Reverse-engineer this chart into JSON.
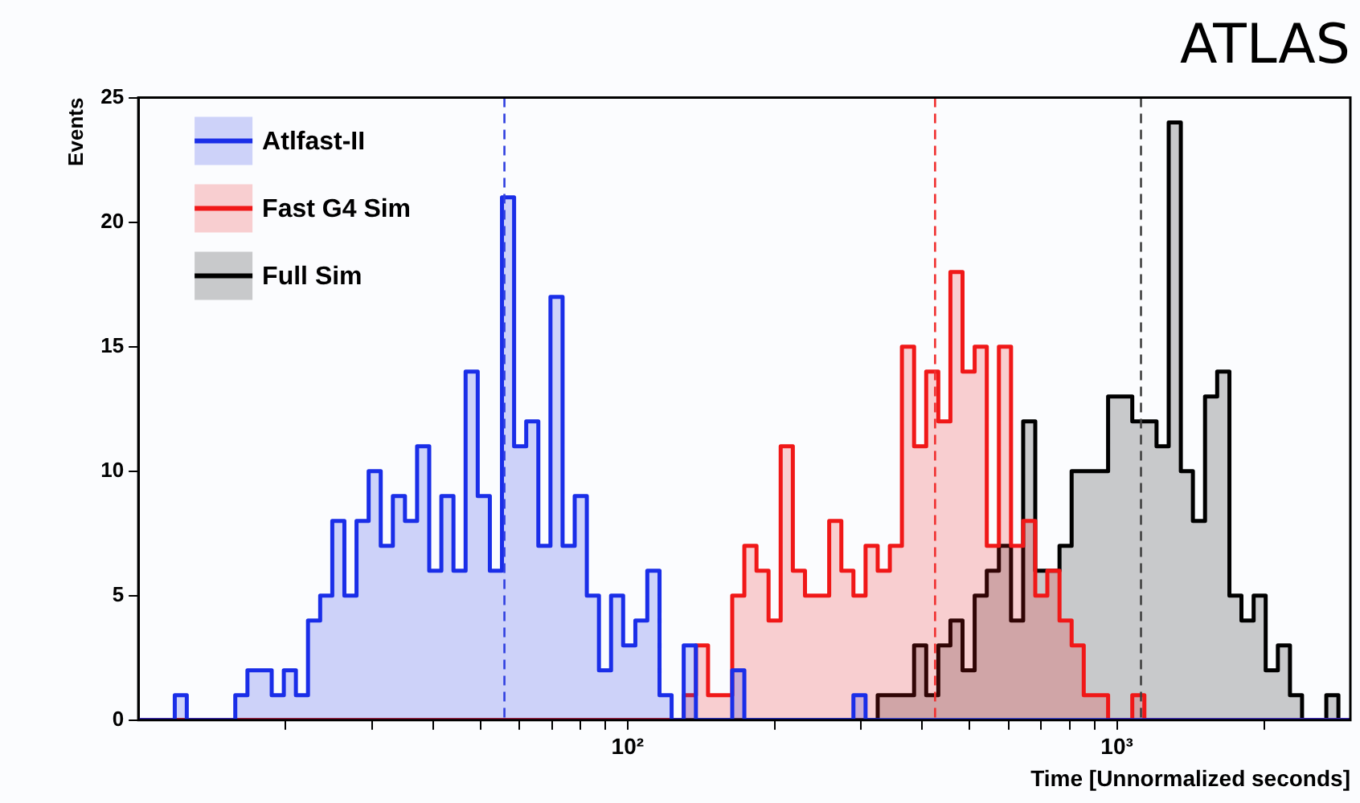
{
  "chart_data": {
    "type": "histogram",
    "title": "ATLAS",
    "xlabel": "Time [Unnormalized seconds]",
    "ylabel": "Events",
    "bins": [
      10,
      10.59,
      11.21,
      11.87,
      12.56,
      13.3,
      14.08,
      14.91,
      15.78,
      16.71,
      17.69,
      18.73,
      19.83,
      20.99,
      22.22,
      23.53,
      24.91,
      26.37,
      27.92,
      29.56,
      31.29,
      33.13,
      35.07,
      37.13,
      39.31,
      41.62,
      44.06,
      46.65,
      49.39,
      52.29,
      55.36,
      58.61,
      62.05,
      65.69,
      69.55,
      73.63,
      77.95,
      82.53,
      87.38,
      92.5,
      97.91,
      103.7,
      109.7,
      116.2,
      123,
      130.2,
      137.9,
      146,
      154.6,
      163.6,
      173.2,
      183.4,
      194.1,
      205.5,
      217.6,
      230.4,
      243.9,
      258.2,
      273.4,
      289.4,
      306.4,
      324.4,
      343.5,
      363.6,
      385,
      407.6,
      431.5,
      456.8,
      483.6,
      512,
      542.1,
      573.9,
      607.6,
      643.3,
      681,
      720.8,
      763.3,
      808.1,
      855.5,
      905.7,
      959.4,
      1016,
      1075,
      1138,
      1205,
      1276,
      1351,
      1430,
      1514,
      1603,
      1698,
      1797,
      1903,
      2014,
      2133,
      2258,
      2390,
      2531,
      2679,
      2836,
      3000
    ],
    "series": [
      {
        "name": "Atlfast-II",
        "color": "#1a2ee8",
        "values": [
          0,
          0,
          0,
          1,
          0,
          0,
          0,
          0,
          1,
          2,
          2,
          1,
          2,
          1,
          4,
          5,
          8,
          5,
          8,
          10,
          7,
          9,
          8,
          11,
          6,
          9,
          6,
          14,
          9,
          6,
          21,
          11,
          12,
          7,
          17,
          7,
          9,
          5,
          2,
          5,
          3,
          4,
          6,
          1,
          0,
          3,
          0,
          0,
          0,
          2,
          0,
          0,
          0,
          0,
          0,
          0,
          0,
          0,
          0,
          1,
          0,
          0,
          0,
          0,
          0,
          0,
          0,
          0,
          0,
          0,
          0,
          0,
          0,
          0,
          0,
          0,
          0,
          0,
          0,
          0,
          0,
          0,
          0,
          0,
          0,
          0,
          0,
          0,
          0,
          0,
          0,
          0,
          0,
          0,
          0,
          0,
          0,
          0,
          0,
          0
        ]
      },
      {
        "name": "Fast G4 Sim",
        "color": "#f01818",
        "values": [
          0,
          0,
          0,
          0,
          0,
          0,
          0,
          0,
          0,
          0,
          0,
          0,
          0,
          0,
          0,
          0,
          0,
          0,
          0,
          0,
          0,
          0,
          0,
          0,
          0,
          0,
          0,
          0,
          0,
          0,
          0,
          0,
          0,
          0,
          0,
          0,
          0,
          0,
          0,
          0,
          0,
          0,
          0,
          0,
          0,
          1,
          3,
          1,
          1,
          5,
          7,
          6,
          4,
          11,
          6,
          5,
          5,
          8,
          6,
          5,
          7,
          6,
          7,
          15,
          11,
          14,
          12,
          18,
          14,
          15,
          7,
          15,
          7,
          8,
          5,
          6,
          4,
          3,
          1,
          1,
          0,
          0,
          1,
          0,
          0,
          0,
          0,
          0,
          0,
          0,
          0,
          0,
          0,
          0,
          0,
          0,
          0,
          0,
          0,
          0
        ]
      },
      {
        "name": "Full Sim",
        "color": "#000000",
        "values": [
          0,
          0,
          0,
          0,
          0,
          0,
          0,
          0,
          0,
          0,
          0,
          0,
          0,
          0,
          0,
          0,
          0,
          0,
          0,
          0,
          0,
          0,
          0,
          0,
          0,
          0,
          0,
          0,
          0,
          0,
          0,
          0,
          0,
          0,
          0,
          0,
          0,
          0,
          0,
          0,
          0,
          0,
          0,
          0,
          0,
          0,
          0,
          0,
          0,
          0,
          0,
          0,
          0,
          0,
          0,
          0,
          0,
          0,
          0,
          0,
          0,
          1,
          1,
          1,
          3,
          1,
          3,
          4,
          2,
          5,
          6,
          7,
          4,
          12,
          6,
          6,
          7,
          10,
          10,
          10,
          13,
          13,
          12,
          12,
          11,
          24,
          10,
          8,
          13,
          14,
          5,
          4,
          5,
          2,
          3,
          1,
          0,
          0,
          1,
          0
        ]
      }
    ],
    "xlim": [
      10,
      3000
    ],
    "xticks": [
      {
        "value": 20,
        "label": null
      },
      {
        "value": 30,
        "label": null
      },
      {
        "value": 40,
        "label": null
      },
      {
        "value": 50,
        "label": null
      },
      {
        "value": 60,
        "label": null
      },
      {
        "value": 70,
        "label": null
      },
      {
        "value": 80,
        "label": null
      },
      {
        "value": 90,
        "label": null
      },
      {
        "value": 100,
        "label": "10²"
      },
      {
        "value": 200,
        "label": null
      },
      {
        "value": 300,
        "label": null
      },
      {
        "value": 400,
        "label": null
      },
      {
        "value": 500,
        "label": null
      },
      {
        "value": 600,
        "label": null
      },
      {
        "value": 700,
        "label": null
      },
      {
        "value": 800,
        "label": null
      },
      {
        "value": 900,
        "label": null
      },
      {
        "value": 1000,
        "label": "10³"
      },
      {
        "value": 2000,
        "label": null
      }
    ],
    "ylim": [
      0,
      25
    ],
    "yticks": [
      0,
      5,
      10,
      15,
      20,
      25
    ],
    "log": "x",
    "grid": false,
    "legend": "top left",
    "marker": "none",
    "ref_lines": [
      {
        "axis": "x",
        "value": 56,
        "color": "#3040e0",
        "line_style": "dashed"
      },
      {
        "axis": "x",
        "value": 425,
        "color": "#f03030",
        "line_style": "dashed"
      },
      {
        "axis": "x",
        "value": 1120,
        "color": "#404040",
        "line_style": "dashed"
      }
    ]
  }
}
